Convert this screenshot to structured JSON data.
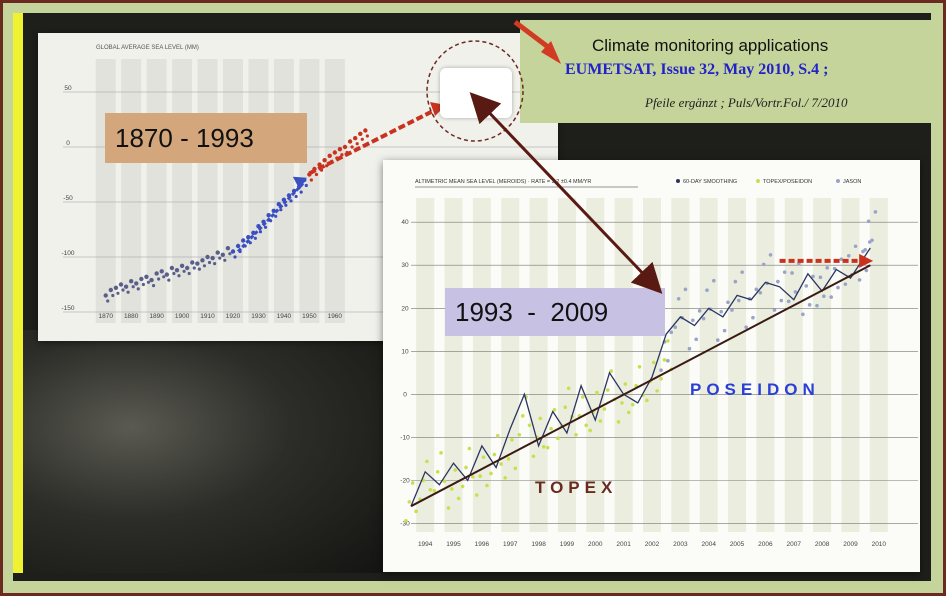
{
  "citation": {
    "title": "Climate monitoring applications",
    "source": "EUMETSAT, Issue 32, May 2010, S.4 ;",
    "note": "Pfeile ergänzt ; Puls/Vortr.Fol./ 7/2010"
  },
  "labels": {
    "period_1": "1870 - 1993",
    "period_2": "1993  -  2009",
    "poseidon": "POSEIDON",
    "topex": "TOPEX"
  },
  "colors": {
    "frame": "#6b2a20",
    "background": "#c4d49a",
    "historic_dots": "#5a5f8a",
    "arrow_blue": "#3a4fc0",
    "arrow_red": "#c8321e",
    "arrow_brown": "#5a1a14",
    "topex_dots": "#c8e050",
    "jason_dots": "#9aa3c8",
    "smooth_line": "#2a3560",
    "trend_line": "#3a1a14"
  },
  "chart_data": [
    {
      "type": "scatter",
      "title": "GLOBAL AVERAGE SEA LEVEL (MM)",
      "xlabel": "",
      "ylabel": "",
      "xlim": [
        1865,
        1975
      ],
      "ylim": [
        -160,
        60
      ],
      "x_ticks": [
        "1870",
        "1880",
        "1890",
        "1900",
        "1910",
        "1920",
        "1930",
        "1940",
        "1950",
        "1960"
      ],
      "y_ticks": [
        "50",
        "0",
        "-50",
        "-100",
        "-150"
      ],
      "grid": true,
      "series": [
        {
          "x": [
            1870,
            1872,
            1874,
            1876,
            1878,
            1880,
            1882,
            1884,
            1886,
            1888,
            1890,
            1892,
            1894,
            1896,
            1898,
            1900,
            1902,
            1904,
            1906,
            1908,
            1910,
            1912,
            1914,
            1916,
            1918,
            1920,
            1922,
            1924,
            1926,
            1928,
            1930,
            1932,
            1934,
            1936,
            1938,
            1940,
            1942,
            1944,
            1946,
            1948,
            1950,
            1952,
            1954,
            1956,
            1958,
            1960,
            1962,
            1964,
            1966,
            1968,
            1970,
            1972
          ],
          "y": [
            -135,
            -130,
            -128,
            -125,
            -127,
            -122,
            -124,
            -120,
            -118,
            -121,
            -115,
            -113,
            -116,
            -110,
            -112,
            -108,
            -110,
            -105,
            -106,
            -103,
            -100,
            -101,
            -96,
            -98,
            -92,
            -95,
            -90,
            -85,
            -82,
            -78,
            -72,
            -68,
            -62,
            -58,
            -52,
            -48,
            -44,
            -40,
            -36,
            -30,
            -25,
            -20,
            -16,
            -12,
            -8,
            -5,
            -2,
            0,
            5,
            8,
            12,
            15
          ]
        }
      ]
    },
    {
      "type": "line",
      "title": "ALTIMETRIC MEAN SEA LEVEL (MEROIDS) · RATE = 3.2 ±0.4 MM/YR",
      "legend": [
        "60-DAY SMOOTHING",
        "TOPEX/POSEIDON",
        "JASON"
      ],
      "legend_position": "top",
      "xlabel": "",
      "ylabel": "",
      "xlim": [
        1993,
        2010
      ],
      "ylim": [
        -32,
        44
      ],
      "x_ticks": [
        "1994",
        "1995",
        "1996",
        "1997",
        "1998",
        "1999",
        "2000",
        "2001",
        "2002",
        "2003",
        "2004",
        "2005",
        "2006",
        "2007",
        "2008",
        "2009",
        "2010"
      ],
      "y_ticks": [
        "40",
        "30",
        "20",
        "10",
        "0",
        "-10",
        "-20",
        "-30"
      ],
      "grid": true,
      "series": [
        {
          "name": "TOPEX/POSEIDON",
          "x": [
            1993.0,
            1993.5,
            1994.0,
            1994.5,
            1995.0,
            1995.5,
            1996.0,
            1996.5,
            1997.0,
            1997.5,
            1998.0,
            1998.5,
            1999.0,
            1999.5,
            2000.0,
            2000.5,
            2001.0,
            2001.5,
            2002.0
          ],
          "y": [
            -25,
            -20,
            -18,
            -22,
            -17,
            -19,
            -14,
            -15,
            -5,
            -10,
            -8,
            -3,
            -5,
            -4,
            1,
            -2,
            2,
            3,
            8
          ]
        },
        {
          "name": "JASON",
          "x": [
            2002.0,
            2002.5,
            2003.0,
            2003.5,
            2004.0,
            2004.5,
            2005.0,
            2005.5,
            2006.0,
            2006.5,
            2007.0,
            2007.5,
            2008.0,
            2008.5,
            2009.0,
            2009.2
          ],
          "y": [
            10,
            20,
            15,
            22,
            17,
            24,
            20,
            28,
            24,
            26,
            23,
            25,
            27,
            30,
            31,
            38
          ]
        },
        {
          "name": "60-DAY SMOOTHING",
          "x": [
            1993.0,
            1993.5,
            1994.0,
            1994.5,
            1995.0,
            1995.5,
            1996.0,
            1996.5,
            1997.0,
            1997.5,
            1998.0,
            1998.5,
            1999.0,
            1999.5,
            2000.0,
            2000.5,
            2001.0,
            2001.5,
            2002.0,
            2002.5,
            2003.0,
            2003.5,
            2004.0,
            2004.5,
            2005.0,
            2005.5,
            2006.0,
            2006.5,
            2007.0,
            2007.5,
            2008.0,
            2008.5,
            2009.0,
            2009.2
          ],
          "y": [
            -26,
            -18,
            -21,
            -16,
            -20,
            -12,
            -17,
            -8,
            0,
            -12,
            -4,
            -9,
            2,
            -6,
            5,
            0,
            -2,
            4,
            14,
            18,
            16,
            20,
            18,
            23,
            22,
            26,
            25,
            22,
            28,
            24,
            29,
            27,
            32,
            34
          ]
        },
        {
          "name": "trend",
          "x": [
            1993.0,
            2009.2
          ],
          "y": [
            -26,
            30
          ]
        }
      ]
    }
  ]
}
